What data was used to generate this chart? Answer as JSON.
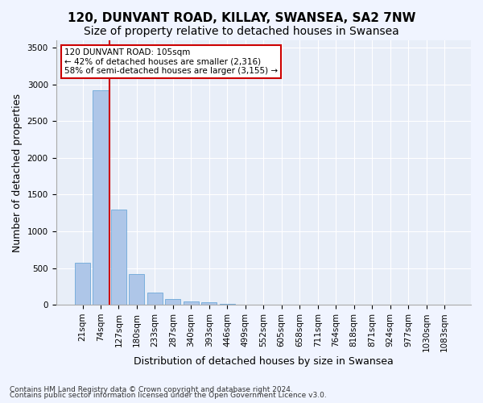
{
  "title1": "120, DUNVANT ROAD, KILLAY, SWANSEA, SA2 7NW",
  "title2": "Size of property relative to detached houses in Swansea",
  "xlabel": "Distribution of detached houses by size in Swansea",
  "ylabel": "Number of detached properties",
  "bins": [
    "21sqm",
    "74sqm",
    "127sqm",
    "180sqm",
    "233sqm",
    "287sqm",
    "340sqm",
    "393sqm",
    "446sqm",
    "499sqm",
    "552sqm",
    "605sqm",
    "658sqm",
    "711sqm",
    "764sqm",
    "818sqm",
    "871sqm",
    "924sqm",
    "977sqm",
    "1030sqm",
    "1083sqm"
  ],
  "values": [
    570,
    2920,
    1300,
    415,
    165,
    80,
    50,
    35,
    15,
    0,
    0,
    0,
    0,
    0,
    0,
    0,
    0,
    0,
    0,
    0,
    0
  ],
  "bar_color": "#aec6e8",
  "bar_edge_color": "#5a9fd4",
  "vline_pos": 1.5,
  "vline_color": "#cc0000",
  "annotation_text": "120 DUNVANT ROAD: 105sqm\n← 42% of detached houses are smaller (2,316)\n58% of semi-detached houses are larger (3,155) →",
  "annotation_box_color": "#ffffff",
  "annotation_box_edge": "#cc0000",
  "ylim": [
    0,
    3600
  ],
  "yticks": [
    0,
    500,
    1000,
    1500,
    2000,
    2500,
    3000,
    3500
  ],
  "footer1": "Contains HM Land Registry data © Crown copyright and database right 2024.",
  "footer2": "Contains public sector information licensed under the Open Government Licence v3.0.",
  "bg_color": "#f0f4ff",
  "plot_bg_color": "#e8eef8",
  "grid_color": "#ffffff",
  "title_fontsize": 11,
  "subtitle_fontsize": 10,
  "tick_fontsize": 7.5,
  "ylabel_fontsize": 9,
  "xlabel_fontsize": 9,
  "annotation_fontsize": 7.5,
  "footer_fontsize": 6.5
}
